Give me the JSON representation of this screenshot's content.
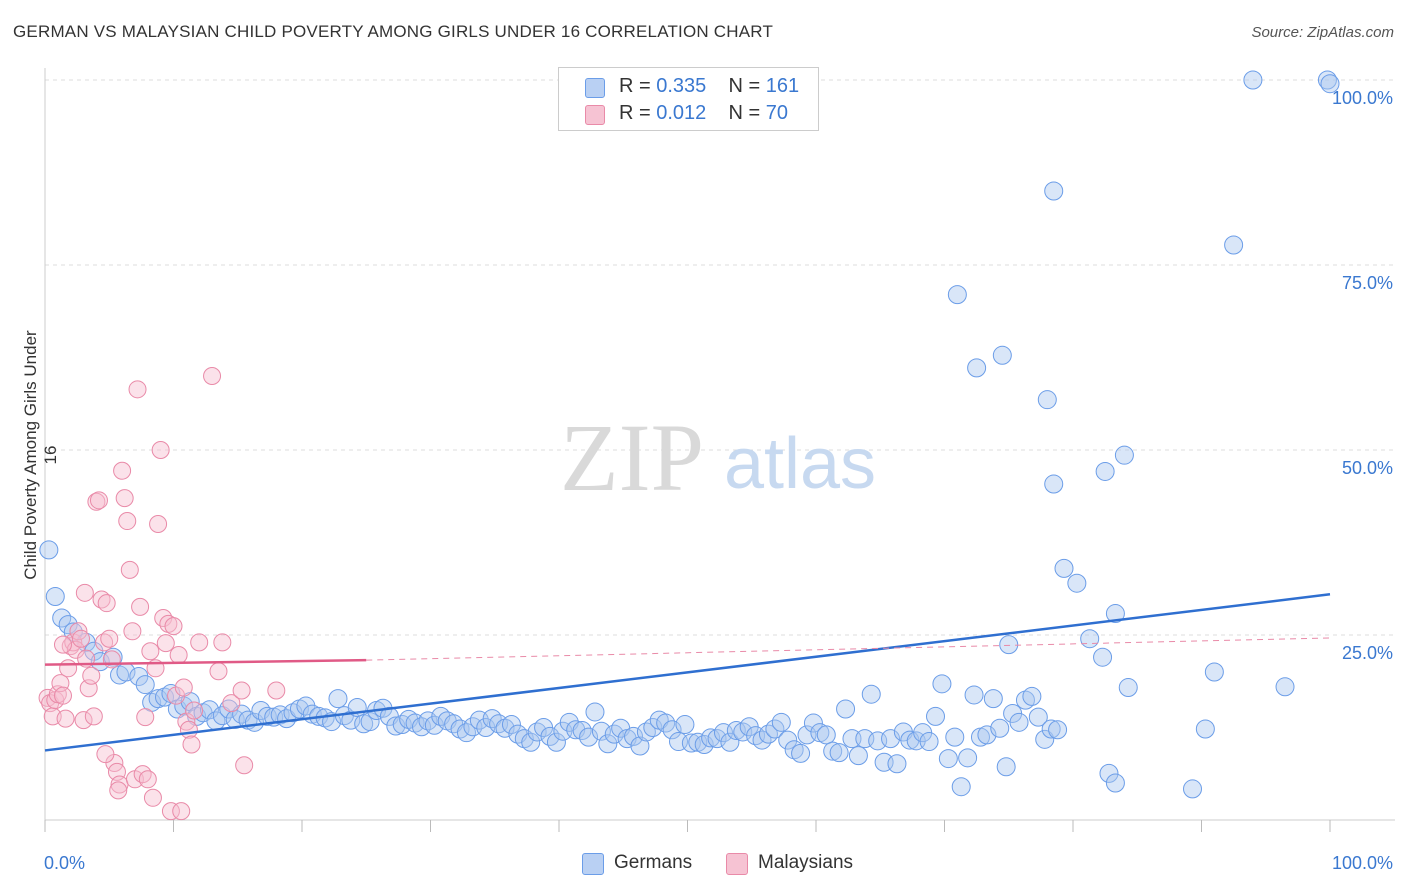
{
  "title": "GERMAN VS MALAYSIAN CHILD POVERTY AMONG GIRLS UNDER 16 CORRELATION CHART",
  "source": "Source: ZipAtlas.com",
  "watermark": {
    "zip": "ZIP",
    "atlas": "atlas"
  },
  "legend": {
    "r_label": "R =",
    "n_label": "N =",
    "series": [
      {
        "r": "0.335",
        "n": "161",
        "color": "#6b9de8",
        "fill": "#b9d0f3"
      },
      {
        "r": "0.012",
        "n": "70",
        "color": "#e98aa8",
        "fill": "#f6c3d3"
      }
    ]
  },
  "bottom_legend": [
    "Germans",
    "Malaysians"
  ],
  "chart_data": {
    "type": "scatter",
    "title": "GERMAN VS MALAYSIAN CHILD POVERTY AMONG GIRLS UNDER 16 CORRELATION CHART",
    "xlabel": "",
    "ylabel": "Child Poverty Among Girls Under 16",
    "xlim": [
      0,
      100
    ],
    "ylim": [
      0,
      100
    ],
    "x_tick_labels": [
      "0.0%",
      "100.0%"
    ],
    "y_tick_labels": [
      "25.0%",
      "50.0%",
      "75.0%",
      "100.0%"
    ],
    "y_ticks": [
      25,
      50,
      75,
      100
    ],
    "grid": true,
    "legend_position": "top-center",
    "series": [
      {
        "name": "Germans",
        "color": "#3a78d0",
        "trend": {
          "x": [
            0,
            100
          ],
          "y": [
            9.4,
            30.5
          ],
          "style": "solid"
        },
        "points": [
          [
            0.3,
            36.5
          ],
          [
            0.8,
            30.2
          ],
          [
            1.3,
            27.3
          ],
          [
            1.8,
            26.4
          ],
          [
            2.2,
            25.4
          ],
          [
            3.2,
            24.0
          ],
          [
            3.8,
            22.8
          ],
          [
            4.3,
            21.4
          ],
          [
            5.3,
            22.0
          ],
          [
            5.8,
            19.6
          ],
          [
            6.3,
            20.0
          ],
          [
            7.3,
            19.4
          ],
          [
            7.8,
            18.3
          ],
          [
            8.3,
            15.9
          ],
          [
            8.8,
            16.4
          ],
          [
            9.3,
            16.6
          ],
          [
            9.8,
            17.1
          ],
          [
            10.3,
            15.0
          ],
          [
            10.8,
            15.4
          ],
          [
            11.3,
            16.0
          ],
          [
            11.8,
            14.0
          ],
          [
            12.3,
            14.5
          ],
          [
            12.8,
            14.9
          ],
          [
            13.3,
            13.4
          ],
          [
            13.8,
            14.1
          ],
          [
            14.3,
            15.0
          ],
          [
            14.8,
            13.6
          ],
          [
            15.3,
            14.3
          ],
          [
            15.8,
            13.5
          ],
          [
            16.3,
            13.2
          ],
          [
            16.8,
            14.8
          ],
          [
            17.3,
            14.0
          ],
          [
            17.8,
            13.9
          ],
          [
            18.3,
            14.2
          ],
          [
            18.8,
            13.7
          ],
          [
            19.3,
            14.5
          ],
          [
            19.8,
            15.0
          ],
          [
            20.3,
            15.4
          ],
          [
            20.8,
            14.3
          ],
          [
            21.3,
            14.0
          ],
          [
            21.8,
            13.8
          ],
          [
            22.3,
            13.3
          ],
          [
            22.8,
            16.4
          ],
          [
            23.3,
            14.1
          ],
          [
            23.8,
            13.5
          ],
          [
            24.3,
            15.2
          ],
          [
            24.8,
            13.0
          ],
          [
            25.3,
            13.3
          ],
          [
            25.8,
            14.8
          ],
          [
            26.3,
            15.1
          ],
          [
            26.8,
            14.0
          ],
          [
            27.3,
            12.7
          ],
          [
            27.8,
            12.9
          ],
          [
            28.3,
            13.6
          ],
          [
            28.8,
            13.1
          ],
          [
            29.3,
            12.6
          ],
          [
            29.8,
            13.4
          ],
          [
            30.3,
            12.8
          ],
          [
            30.8,
            14.0
          ],
          [
            31.3,
            13.4
          ],
          [
            31.8,
            13.0
          ],
          [
            32.3,
            12.3
          ],
          [
            32.8,
            11.8
          ],
          [
            33.3,
            12.6
          ],
          [
            33.8,
            13.5
          ],
          [
            34.3,
            12.5
          ],
          [
            34.8,
            13.7
          ],
          [
            35.3,
            13.0
          ],
          [
            35.8,
            12.4
          ],
          [
            36.3,
            12.9
          ],
          [
            36.8,
            11.6
          ],
          [
            37.3,
            11.0
          ],
          [
            37.8,
            10.5
          ],
          [
            38.3,
            11.9
          ],
          [
            38.8,
            12.5
          ],
          [
            39.3,
            11.3
          ],
          [
            39.8,
            10.5
          ],
          [
            40.3,
            12.0
          ],
          [
            40.8,
            13.2
          ],
          [
            41.3,
            12.2
          ],
          [
            41.8,
            12.1
          ],
          [
            42.3,
            11.2
          ],
          [
            42.8,
            14.6
          ],
          [
            43.3,
            12.0
          ],
          [
            43.8,
            10.3
          ],
          [
            44.3,
            11.6
          ],
          [
            44.8,
            12.4
          ],
          [
            45.3,
            11.0
          ],
          [
            45.8,
            11.3
          ],
          [
            46.3,
            10.0
          ],
          [
            46.8,
            11.9
          ],
          [
            47.3,
            12.5
          ],
          [
            47.8,
            13.5
          ],
          [
            48.3,
            13.1
          ],
          [
            48.8,
            12.2
          ],
          [
            49.3,
            10.6
          ],
          [
            49.8,
            12.9
          ],
          [
            50.3,
            10.4
          ],
          [
            50.8,
            10.5
          ],
          [
            51.3,
            10.2
          ],
          [
            51.8,
            11.1
          ],
          [
            52.3,
            11.0
          ],
          [
            52.8,
            11.8
          ],
          [
            53.3,
            10.5
          ],
          [
            53.8,
            12.1
          ],
          [
            54.3,
            11.9
          ],
          [
            54.8,
            12.6
          ],
          [
            55.3,
            11.4
          ],
          [
            55.8,
            10.8
          ],
          [
            56.3,
            11.6
          ],
          [
            56.8,
            12.3
          ],
          [
            57.3,
            13.2
          ],
          [
            57.8,
            10.8
          ],
          [
            58.3,
            9.5
          ],
          [
            58.8,
            9.0
          ],
          [
            59.3,
            11.5
          ],
          [
            59.8,
            13.1
          ],
          [
            60.3,
            11.8
          ],
          [
            60.8,
            11.5
          ],
          [
            61.3,
            9.3
          ],
          [
            61.8,
            9.1
          ],
          [
            62.3,
            15.0
          ],
          [
            62.8,
            11.0
          ],
          [
            63.3,
            8.7
          ],
          [
            63.8,
            11.0
          ],
          [
            64.3,
            17.0
          ],
          [
            64.8,
            10.7
          ],
          [
            65.3,
            7.8
          ],
          [
            65.8,
            11.0
          ],
          [
            66.3,
            7.6
          ],
          [
            66.8,
            11.9
          ],
          [
            67.3,
            10.8
          ],
          [
            67.8,
            10.7
          ],
          [
            68.3,
            11.8
          ],
          [
            68.8,
            10.6
          ],
          [
            69.3,
            14.0
          ],
          [
            69.8,
            18.4
          ],
          [
            70.3,
            8.3
          ],
          [
            70.8,
            11.2
          ],
          [
            71.3,
            4.5
          ],
          [
            71.8,
            8.4
          ],
          [
            72.3,
            16.9
          ],
          [
            72.8,
            11.2
          ],
          [
            73.3,
            11.5
          ],
          [
            73.8,
            16.4
          ],
          [
            74.3,
            12.4
          ],
          [
            74.8,
            7.2
          ],
          [
            75.3,
            14.4
          ],
          [
            75.8,
            13.2
          ],
          [
            76.3,
            16.2
          ],
          [
            76.8,
            16.7
          ],
          [
            77.3,
            13.9
          ],
          [
            77.8,
            10.9
          ],
          [
            78.3,
            12.3
          ],
          [
            79.3,
            34.0
          ],
          [
            80.3,
            32.0
          ],
          [
            81.3,
            24.5
          ],
          [
            82.3,
            22.0
          ],
          [
            83.3,
            27.9
          ],
          [
            84.3,
            17.9
          ],
          [
            75.0,
            23.7
          ],
          [
            71.0,
            71.0
          ],
          [
            72.5,
            61.1
          ],
          [
            74.5,
            62.8
          ],
          [
            78.0,
            56.8
          ],
          [
            78.5,
            45.4
          ],
          [
            82.5,
            47.1
          ],
          [
            84.0,
            49.3
          ],
          [
            91.0,
            20.0
          ],
          [
            96.5,
            18.0
          ],
          [
            78.5,
            85.0
          ],
          [
            92.5,
            77.7
          ],
          [
            94.0,
            100.0
          ],
          [
            99.8,
            100.0
          ],
          [
            100.0,
            99.5
          ],
          [
            78.8,
            12.2
          ],
          [
            82.8,
            6.3
          ],
          [
            83.3,
            5.0
          ],
          [
            89.3,
            4.2
          ],
          [
            90.3,
            12.3
          ]
        ]
      },
      {
        "name": "Malaysians",
        "color": "#e05a86",
        "trend": {
          "x": [
            0,
            25
          ],
          "y": [
            21.0,
            21.6
          ],
          "style": "solid",
          "dashed_extension_to": [
            100,
            24.6
          ]
        },
        "points": [
          [
            0.2,
            16.5
          ],
          [
            0.4,
            15.8
          ],
          [
            0.6,
            14.0
          ],
          [
            0.8,
            16.2
          ],
          [
            1.0,
            17.0
          ],
          [
            1.2,
            18.5
          ],
          [
            1.4,
            16.8
          ],
          [
            1.6,
            13.7
          ],
          [
            1.8,
            20.5
          ],
          [
            2.0,
            23.5
          ],
          [
            2.2,
            24.0
          ],
          [
            2.4,
            23.0
          ],
          [
            2.6,
            25.5
          ],
          [
            2.8,
            24.5
          ],
          [
            3.0,
            13.5
          ],
          [
            3.2,
            21.8
          ],
          [
            3.4,
            17.8
          ],
          [
            3.6,
            19.5
          ],
          [
            3.8,
            14.0
          ],
          [
            4.0,
            43.0
          ],
          [
            4.2,
            43.2
          ],
          [
            4.4,
            29.8
          ],
          [
            4.6,
            24.0
          ],
          [
            4.8,
            29.3
          ],
          [
            5.0,
            24.5
          ],
          [
            5.2,
            21.7
          ],
          [
            5.4,
            7.7
          ],
          [
            5.6,
            6.5
          ],
          [
            5.8,
            4.8
          ],
          [
            6.0,
            47.2
          ],
          [
            6.2,
            43.5
          ],
          [
            6.4,
            40.4
          ],
          [
            6.6,
            33.8
          ],
          [
            6.8,
            25.5
          ],
          [
            7.0,
            5.5
          ],
          [
            7.2,
            58.2
          ],
          [
            7.4,
            28.8
          ],
          [
            7.6,
            6.2
          ],
          [
            7.8,
            13.9
          ],
          [
            8.0,
            5.5
          ],
          [
            8.2,
            22.8
          ],
          [
            8.4,
            3.0
          ],
          [
            8.6,
            20.5
          ],
          [
            8.8,
            40.0
          ],
          [
            9.0,
            50.0
          ],
          [
            9.2,
            27.3
          ],
          [
            9.4,
            23.9
          ],
          [
            9.6,
            26.5
          ],
          [
            9.8,
            1.2
          ],
          [
            10.0,
            26.2
          ],
          [
            10.2,
            16.8
          ],
          [
            10.4,
            22.3
          ],
          [
            10.6,
            1.2
          ],
          [
            10.8,
            17.9
          ],
          [
            11.0,
            13.3
          ],
          [
            11.2,
            12.2
          ],
          [
            11.4,
            10.2
          ],
          [
            11.6,
            14.8
          ],
          [
            12.0,
            24.0
          ],
          [
            13.0,
            60.0
          ],
          [
            13.5,
            20.1
          ],
          [
            13.8,
            24.0
          ],
          [
            14.5,
            15.8
          ],
          [
            15.5,
            7.4
          ],
          [
            15.3,
            17.5
          ],
          [
            18.0,
            17.5
          ],
          [
            5.7,
            4.0
          ],
          [
            3.1,
            30.7
          ],
          [
            4.7,
            8.9
          ],
          [
            1.4,
            23.7
          ]
        ]
      }
    ]
  }
}
